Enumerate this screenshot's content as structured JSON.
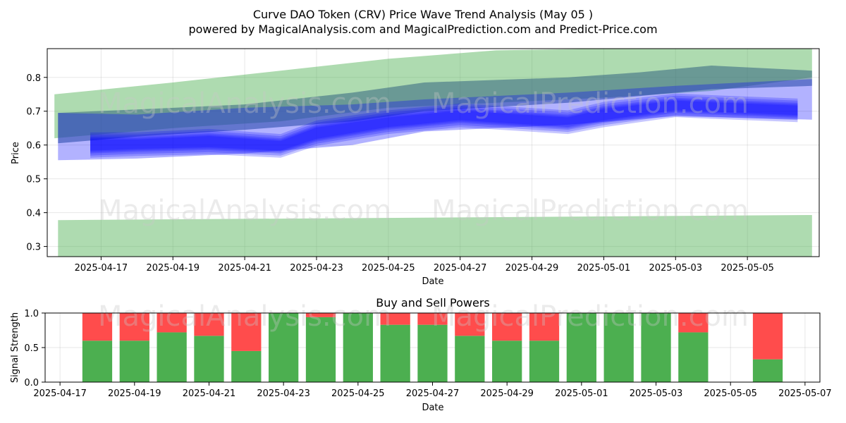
{
  "titles": {
    "line1": "Curve DAO Token (CRV) Price Wave Trend Analysis (May 05 )",
    "line2": "powered by MagicalAnalysis.com and MagicalPrediction.com and Predict-Price.com"
  },
  "watermarks": [
    "MagicalAnalysis.com",
    "MagicalPrediction.com"
  ],
  "colors": {
    "green_band": "#4caf50",
    "blue_band": "#0000ff",
    "buy": "#4caf50",
    "sell": "#ff4c4c"
  },
  "chart_data": [
    {
      "type": "area",
      "title": "",
      "xlabel": "Date",
      "ylabel": "Price",
      "grid": true,
      "xlim": [
        "2025-04-15.5",
        "2025-05-07.0"
      ],
      "ylim": [
        0.27,
        0.885
      ],
      "x_tick_labels": [
        "2025-04-17",
        "2025-04-19",
        "2025-04-21",
        "2025-04-23",
        "2025-04-25",
        "2025-04-27",
        "2025-04-29",
        "2025-05-01",
        "2025-05-03",
        "2025-05-05"
      ],
      "y_tick_labels": [
        "0.3",
        "0.4",
        "0.5",
        "0.6",
        "0.7",
        "0.8"
      ],
      "series": [
        {
          "name": "upper-green-band",
          "x": [
            "2025-04-15.7",
            "2025-04-19",
            "2025-04-22",
            "2025-04-25",
            "2025-04-28",
            "2025-05-01",
            "2025-05-04",
            "2025-05-06.8"
          ],
          "upper": [
            0.75,
            0.785,
            0.82,
            0.855,
            0.88,
            0.89,
            0.89,
            0.89
          ],
          "lower": [
            0.62,
            0.65,
            0.67,
            0.71,
            0.725,
            0.74,
            0.76,
            0.8
          ]
        },
        {
          "name": "steel-blue-band",
          "x": [
            "2025-04-15.8",
            "2025-04-18",
            "2025-04-21",
            "2025-04-24",
            "2025-04-26",
            "2025-04-30",
            "2025-05-02",
            "2025-05-04",
            "2025-05-06.8"
          ],
          "upper": [
            0.695,
            0.705,
            0.72,
            0.755,
            0.785,
            0.8,
            0.815,
            0.835,
            0.82
          ],
          "lower": [
            0.605,
            0.625,
            0.645,
            0.67,
            0.7,
            0.725,
            0.745,
            0.765,
            0.775
          ]
        },
        {
          "name": "blue-wide-band",
          "x": [
            "2025-04-15.8",
            "2025-04-18",
            "2025-04-21",
            "2025-04-24",
            "2025-04-26",
            "2025-04-30",
            "2025-05-03",
            "2025-05-06.8"
          ],
          "upper": [
            0.695,
            0.69,
            0.71,
            0.72,
            0.735,
            0.755,
            0.775,
            0.795
          ],
          "lower": [
            0.555,
            0.56,
            0.575,
            0.6,
            0.64,
            0.66,
            0.685,
            0.675
          ]
        },
        {
          "name": "blue-core-wave",
          "x": [
            "2025-04-16.7",
            "2025-04-18",
            "2025-04-20",
            "2025-04-22",
            "2025-04-23",
            "2025-04-25",
            "2025-04-27",
            "2025-04-30",
            "2025-05-01",
            "2025-05-03",
            "2025-05-04",
            "2025-05-06.4"
          ],
          "upper": [
            0.625,
            0.625,
            0.635,
            0.62,
            0.66,
            0.69,
            0.71,
            0.69,
            0.715,
            0.74,
            0.735,
            0.725
          ],
          "lower": [
            0.575,
            0.58,
            0.585,
            0.575,
            0.61,
            0.645,
            0.665,
            0.645,
            0.665,
            0.695,
            0.69,
            0.68
          ]
        },
        {
          "name": "lower-green-band",
          "x": [
            "2025-04-15.8",
            "2025-05-06.8"
          ],
          "upper": [
            0.378,
            0.393
          ],
          "lower": [
            0.27,
            0.27
          ]
        }
      ]
    },
    {
      "type": "bar",
      "stacked": true,
      "title": "Buy and Sell Powers",
      "xlabel": "Date",
      "ylabel": "Signal Strength",
      "grid": true,
      "ylim": [
        0,
        1
      ],
      "x_tick_labels": [
        "2025-04-17",
        "2025-04-19",
        "2025-04-21",
        "2025-04-23",
        "2025-04-25",
        "2025-04-27",
        "2025-04-29",
        "2025-05-01",
        "2025-05-03",
        "2025-05-05",
        "2025-05-07"
      ],
      "y_tick_labels": [
        "0.0",
        "0.5",
        "1.0"
      ],
      "categories": [
        "2025-04-18",
        "2025-04-19",
        "2025-04-20",
        "2025-04-21",
        "2025-04-22",
        "2025-04-23",
        "2025-04-24",
        "2025-04-25",
        "2025-04-26",
        "2025-04-27",
        "2025-04-28",
        "2025-04-29",
        "2025-04-30",
        "2025-05-01",
        "2025-05-02",
        "2025-05-03",
        "2025-05-04",
        "2025-05-06"
      ],
      "series": [
        {
          "name": "Buy",
          "values": [
            0.6,
            0.6,
            0.72,
            0.67,
            0.45,
            1.0,
            0.94,
            1.0,
            0.83,
            0.83,
            0.67,
            0.6,
            0.6,
            1.0,
            1.0,
            1.0,
            0.72,
            0.33
          ]
        },
        {
          "name": "Sell",
          "values": [
            0.4,
            0.4,
            0.28,
            0.33,
            0.55,
            0.0,
            0.06,
            0.0,
            0.17,
            0.17,
            0.33,
            0.4,
            0.4,
            0.0,
            0.0,
            0.0,
            0.28,
            0.67
          ]
        }
      ]
    }
  ]
}
